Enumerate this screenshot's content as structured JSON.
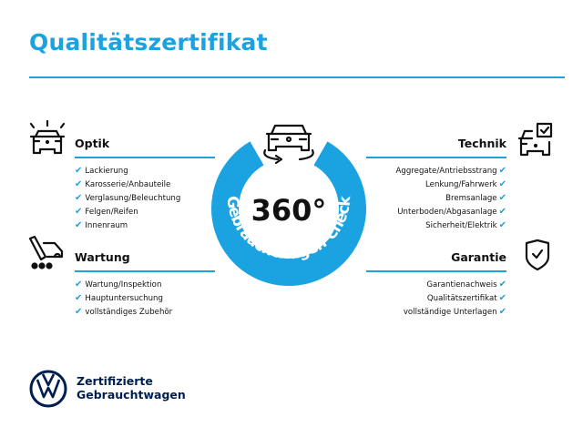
{
  "title": "Qualitätszertifikat",
  "colors": {
    "accent": "#1aa3e0",
    "brand": "#001e50"
  },
  "center": {
    "big": "360°",
    "arc": "Gebrauchtwagen-Check",
    "icon": "car-rotate-icon"
  },
  "sections": {
    "optik": {
      "heading": "Optik",
      "icon": "car-lights-icon",
      "items": [
        "Lackierung",
        "Karosserie/Anbauteile",
        "Verglasung/Beleuchtung",
        "Felgen/Reifen",
        "Innenraum"
      ]
    },
    "wartung": {
      "heading": "Wartung",
      "icon": "wrench-van-icon",
      "items": [
        "Wartung/Inspektion",
        "Hauptuntersuchung",
        "vollständiges Zubehör"
      ]
    },
    "technik": {
      "heading": "Technik",
      "icon": "car-checkbox-icon",
      "items": [
        "Aggregate/Antriebsstrang",
        "Lenkung/Fahrwerk",
        "Bremsanlage",
        "Unterboden/Abgasanlage",
        "Sicherheit/Elektrik"
      ]
    },
    "garantie": {
      "heading": "Garantie",
      "icon": "shield-check-icon",
      "items": [
        "Garantienachweis",
        "Qualitätszertifikat",
        "vollständige Unterlagen"
      ]
    }
  },
  "check_mark": "✔",
  "brand": {
    "line1": "Zertifizierte",
    "line2": "Gebrauchtwagen"
  }
}
